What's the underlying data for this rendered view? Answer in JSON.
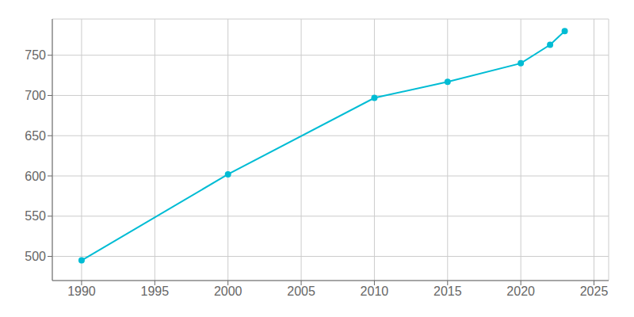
{
  "chart_data": {
    "type": "line",
    "x": [
      1990,
      2000,
      2010,
      2015,
      2020,
      2022,
      2023
    ],
    "values": [
      495,
      602,
      697,
      717,
      740,
      763,
      780
    ],
    "color": "#00BCD4",
    "marker": "o",
    "xlim": [
      1988,
      2026
    ],
    "ylim": [
      470,
      795
    ],
    "xticks": [
      1990,
      1995,
      2000,
      2005,
      2010,
      2015,
      2020,
      2025
    ],
    "yticks": [
      500,
      550,
      600,
      650,
      700,
      750
    ],
    "grid": true
  }
}
